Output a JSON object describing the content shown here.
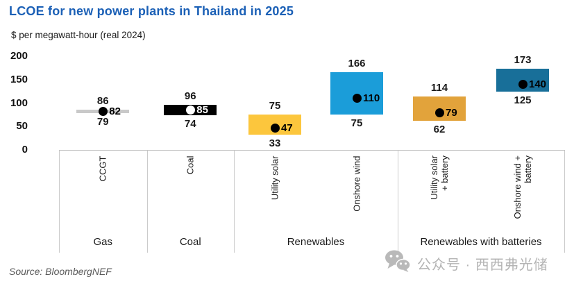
{
  "chart_data": {
    "type": "bar",
    "variant": "floating-range-bars-with-point-estimate",
    "title": "LCOE for new power plants in Thailand in 2025",
    "subtitle": "$ per megawatt-hour (real 2024)",
    "y_axis": {
      "ticks": [
        200,
        150,
        100,
        50,
        0
      ],
      "range": [
        0,
        200
      ],
      "gridlines": false
    },
    "groups": [
      {
        "label": "Gas",
        "items": [
          {
            "label": "CCGT",
            "low": 79,
            "mid": 82,
            "high": 86,
            "bar_color": "#c9c9c9",
            "dot_color": "#000000",
            "mid_label_color": "#000000"
          }
        ]
      },
      {
        "label": "Coal",
        "items": [
          {
            "label": "Coal",
            "low": 74,
            "mid": 85,
            "high": 96,
            "bar_color": "#000000",
            "dot_color": "#ffffff",
            "mid_label_color": "#ffffff"
          }
        ]
      },
      {
        "label": "Renewables",
        "items": [
          {
            "label": "Utility solar",
            "low": 33,
            "mid": 47,
            "high": 75,
            "bar_color": "#fcc63d",
            "dot_color": "#000000",
            "mid_label_color": "#000000"
          },
          {
            "label": "Onshore wind",
            "low": 75,
            "mid": 110,
            "high": 166,
            "bar_color": "#1b9dd9",
            "dot_color": "#000000",
            "mid_label_color": "#000000"
          }
        ]
      },
      {
        "label": "Renewables with batteries",
        "items": [
          {
            "label": "Utility solar\n+ battery",
            "low": 62,
            "mid": 79,
            "high": 114,
            "bar_color": "#e2a33b",
            "dot_color": "#000000",
            "mid_label_color": "#000000"
          },
          {
            "label": "Onshore wind +\nbattery",
            "low": 125,
            "mid": 140,
            "high": 173,
            "bar_color": "#186f99",
            "dot_color": "#000000",
            "mid_label_color": "#000000"
          }
        ]
      }
    ],
    "source": "Source: BloombergNEF"
  },
  "watermark": {
    "icon": "wechat-icon",
    "text": "公众号 · 西西弗光储"
  }
}
